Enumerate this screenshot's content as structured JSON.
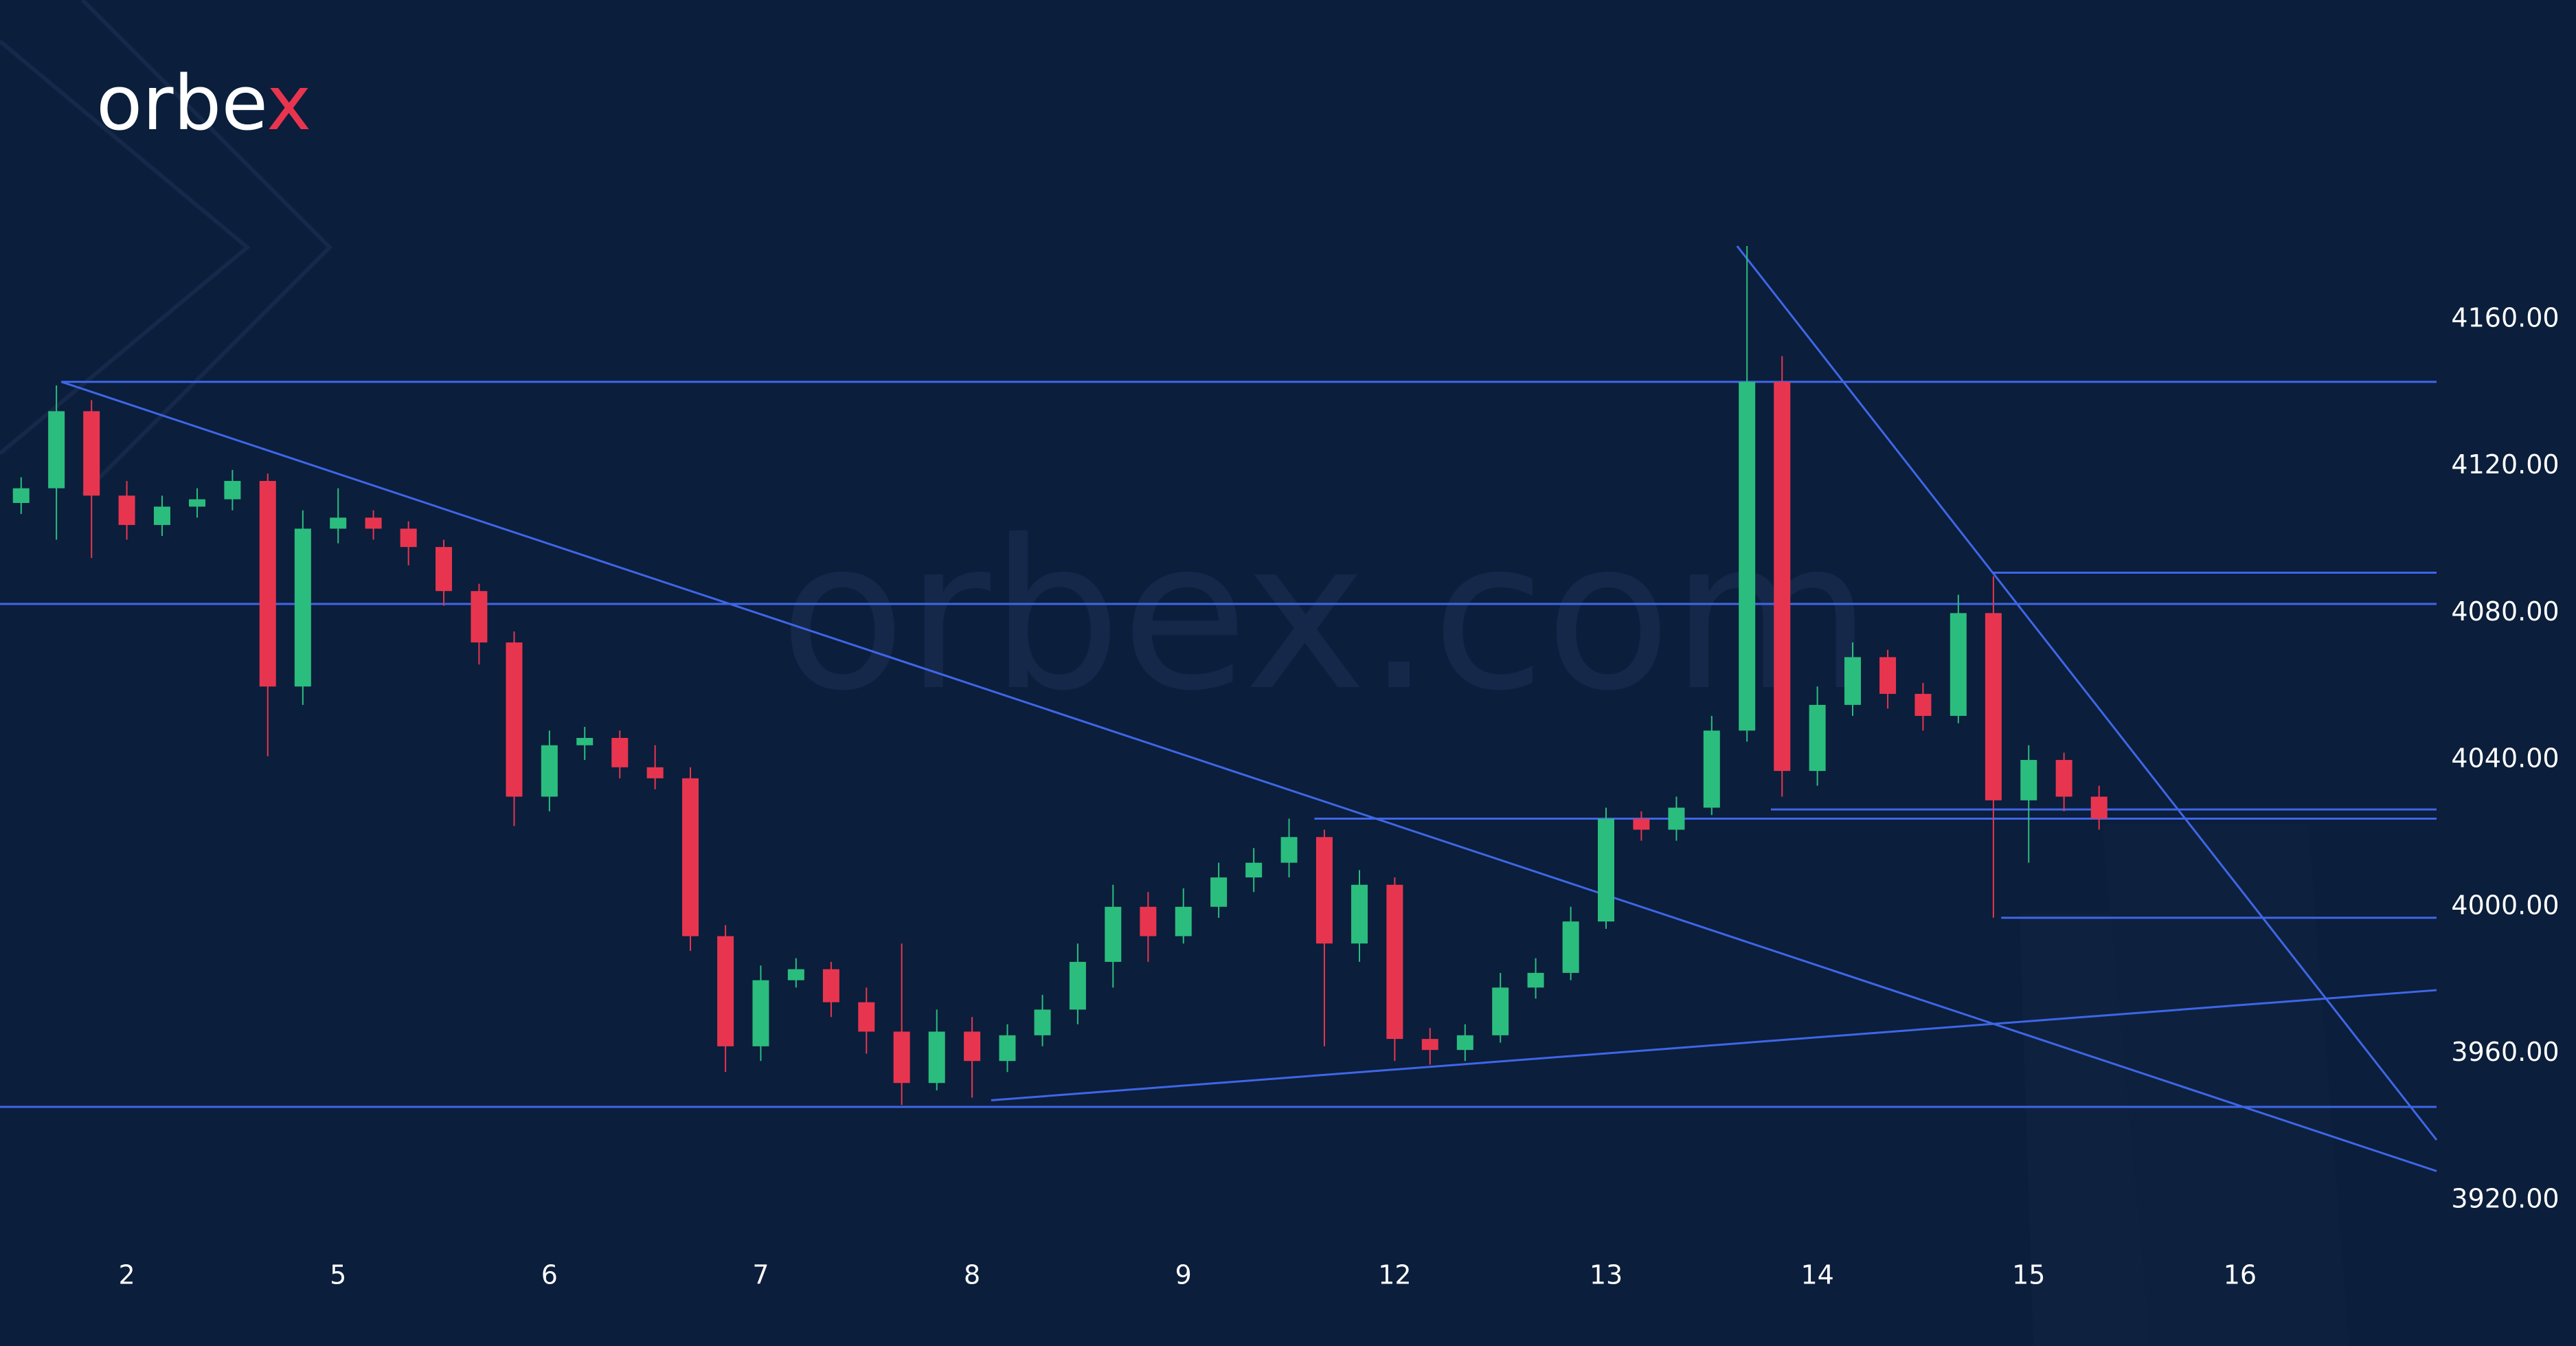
{
  "chart_data": {
    "type": "candlestick",
    "logo": {
      "main": "orbe",
      "accent": "x"
    },
    "watermark": "orbex.com",
    "up_color": "#2bbd7e",
    "down_color": "#e8354f",
    "line_color": "#3f66e6",
    "xlim": [
      -0.6,
      10.93
    ],
    "ylim": [
      3909,
      4247
    ],
    "xticks": [
      {
        "value": 0,
        "label": "2"
      },
      {
        "value": 1,
        "label": "5"
      },
      {
        "value": 2,
        "label": "6"
      },
      {
        "value": 3,
        "label": "7"
      },
      {
        "value": 4,
        "label": "8"
      },
      {
        "value": 5,
        "label": "9"
      },
      {
        "value": 6,
        "label": "12"
      },
      {
        "value": 7,
        "label": "13"
      },
      {
        "value": 8,
        "label": "14"
      },
      {
        "value": 9,
        "label": "15"
      },
      {
        "value": 10,
        "label": "16"
      }
    ],
    "yticks": [
      {
        "value": 3920,
        "label": "3920.00"
      },
      {
        "value": 3960,
        "label": "3960.00"
      },
      {
        "value": 4000,
        "label": "4000.00"
      },
      {
        "value": 4040,
        "label": "4040.00"
      },
      {
        "value": 4080,
        "label": "4080.00"
      },
      {
        "value": 4120,
        "label": "4120.00"
      },
      {
        "value": 4160,
        "label": "4160.00"
      }
    ],
    "x": [
      -0.5,
      -0.333,
      -0.167,
      0,
      0.167,
      0.333,
      0.5,
      0.667,
      0.833,
      1,
      1.167,
      1.333,
      1.5,
      1.667,
      1.833,
      2,
      2.167,
      2.333,
      2.5,
      2.667,
      2.833,
      3,
      3.167,
      3.333,
      3.5,
      3.667,
      3.833,
      4,
      4.167,
      4.333,
      4.5,
      4.667,
      4.833,
      5,
      5.167,
      5.333,
      5.5,
      5.667,
      5.833,
      6,
      6.167,
      6.333,
      6.5,
      6.667,
      6.833,
      7,
      7.167,
      7.333,
      7.5,
      7.667,
      7.833,
      8,
      8.167,
      8.333,
      8.5,
      8.667,
      8.833,
      9,
      9.167,
      9.333
    ],
    "open": [
      4110,
      4114,
      4135,
      4112,
      4104,
      4109,
      4111,
      4116,
      4060,
      4103,
      4106,
      4103,
      4098,
      4086,
      4072,
      4030,
      4044,
      4046,
      4038,
      4035,
      3992,
      3962,
      3980,
      3983,
      3974,
      3966,
      3952,
      3966,
      3958,
      3965,
      3972,
      3985,
      4000,
      3992,
      4000,
      4008,
      4012,
      4019,
      3990,
      4006,
      3964,
      3961,
      3965,
      3978,
      3982,
      3996,
      4024,
      4021,
      4027,
      4048,
      4143,
      4037,
      4055,
      4068,
      4058,
      4052,
      4080,
      4029,
      4040,
      4030
    ],
    "high": [
      4117,
      4142,
      4138,
      4116,
      4112,
      4114,
      4119,
      4118,
      4108,
      4114,
      4108,
      4105,
      4100,
      4088,
      4075,
      4048,
      4049,
      4048,
      4044,
      4038,
      3995,
      3984,
      3986,
      3985,
      3978,
      3990,
      3972,
      3970,
      3968,
      3976,
      3990,
      4006,
      4004,
      4005,
      4012,
      4016,
      4024,
      4021,
      4010,
      4008,
      3967,
      3968,
      3982,
      3986,
      4000,
      4027,
      4026,
      4030,
      4052,
      4180,
      4150,
      4060,
      4072,
      4070,
      4061,
      4085,
      4090,
      4044,
      4042,
      4033
    ],
    "low": [
      4107,
      4100,
      4095,
      4100,
      4101,
      4106,
      4108,
      4041,
      4055,
      4099,
      4100,
      4093,
      4082,
      4066,
      4022,
      4026,
      4040,
      4035,
      4032,
      3988,
      3955,
      3958,
      3978,
      3970,
      3960,
      3946,
      3950,
      3948,
      3955,
      3962,
      3968,
      3978,
      3985,
      3990,
      3997,
      4004,
      4008,
      3962,
      3985,
      3958,
      3957,
      3958,
      3963,
      3975,
      3980,
      3994,
      4018,
      4018,
      4025,
      4045,
      4030,
      4033,
      4052,
      4054,
      4048,
      4050,
      3997,
      4012,
      4026,
      4021
    ],
    "close": [
      4114,
      4135,
      4112,
      4104,
      4109,
      4111,
      4116,
      4060,
      4103,
      4106,
      4103,
      4098,
      4086,
      4072,
      4030,
      4044,
      4046,
      4038,
      4035,
      3992,
      3962,
      3980,
      3983,
      3974,
      3966,
      3952,
      3966,
      3958,
      3965,
      3972,
      3985,
      4000,
      3992,
      4000,
      4008,
      4012,
      4019,
      3990,
      4006,
      3964,
      3961,
      3965,
      3978,
      3982,
      3996,
      4024,
      4021,
      4027,
      4048,
      4143,
      4037,
      4055,
      4068,
      4058,
      4052,
      4080,
      4029,
      4040,
      4030,
      4024
    ],
    "lines": [
      {
        "x": [
          -0.31,
          10.93
        ],
        "y": [
          4143,
          4143
        ]
      },
      {
        "x": [
          -0.6,
          10.93
        ],
        "y": [
          4082.5,
          4082.5
        ]
      },
      {
        "x": [
          -0.6,
          10.93
        ],
        "y": [
          3945.5,
          3945.5
        ]
      },
      {
        "x": [
          -0.31,
          10.93
        ],
        "y": [
          4143,
          3928
        ]
      },
      {
        "x": [
          4.09,
          10.93
        ],
        "y": [
          3947.3,
          3977.3
        ]
      },
      {
        "x": [
          7.62,
          10.93
        ],
        "y": [
          4180,
          3936.5
        ]
      },
      {
        "x": [
          5.62,
          10.93
        ],
        "y": [
          4024,
          4024
        ]
      },
      {
        "x": [
          7.78,
          10.93
        ],
        "y": [
          4026.5,
          4026.5
        ]
      },
      {
        "x": [
          8.83,
          10.93
        ],
        "y": [
          4091,
          4091
        ]
      },
      {
        "x": [
          8.87,
          10.93
        ],
        "y": [
          3997,
          3997
        ]
      }
    ]
  }
}
